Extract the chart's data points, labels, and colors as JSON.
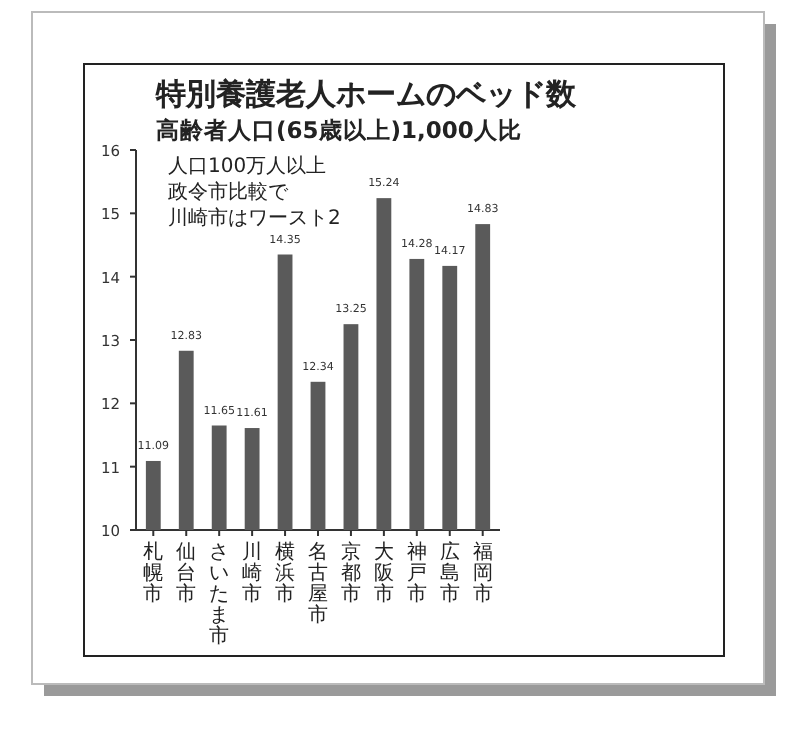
{
  "chart_data": {
    "type": "bar",
    "title": "特別養護老人ホームのベッド数",
    "subtitle": "高齢者人口(65歳以上)1,000人比",
    "annotations": [
      "人口100万人以上",
      "政令市比較で",
      "川崎市はワースト2"
    ],
    "categories": [
      "札幌市",
      "仙台市",
      "さいたま市",
      "川崎市",
      "横浜市",
      "名古屋市",
      "京都市",
      "大阪市",
      "神戸市",
      "広島市",
      "福岡市"
    ],
    "values": [
      11.09,
      12.83,
      11.65,
      11.61,
      14.35,
      12.34,
      13.25,
      15.24,
      14.28,
      14.17,
      14.83
    ],
    "color": "#5a5a5a",
    "data_labels": true,
    "ylim": [
      10,
      16
    ],
    "yticks": [
      10,
      11,
      12,
      13,
      14,
      15,
      16
    ]
  }
}
